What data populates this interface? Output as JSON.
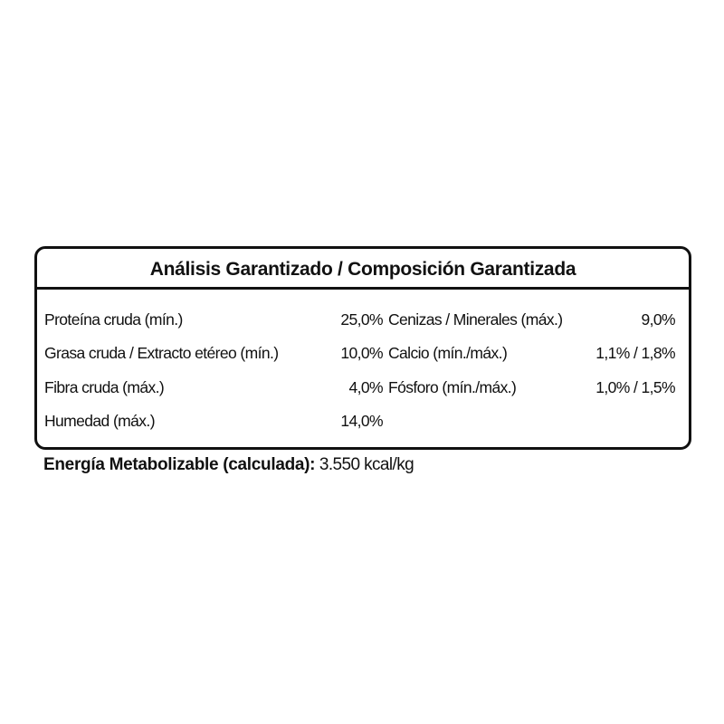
{
  "title": "Análisis Garantizado / Composición Garantizada",
  "rows": [
    {
      "label1": "Proteína cruda (mín.)",
      "value1": "25,0%",
      "label2": "Cenizas / Minerales (máx.)",
      "value2": "9,0%"
    },
    {
      "label1": "Grasa cruda / Extracto etéreo (mín.)",
      "value1": "10,0%",
      "label2": "Calcio (mín./máx.)",
      "value2": "1,1% / 1,8%"
    },
    {
      "label1": "Fibra cruda (máx.)",
      "value1": "4,0%",
      "label2": "Fósforo (mín./máx.)",
      "value2": "1,0% / 1,5%"
    },
    {
      "label1": "Humedad (máx.)",
      "value1": "14,0%",
      "label2": "",
      "value2": ""
    }
  ],
  "energy": {
    "label": "Energía Metabolizable (calculada):",
    "value": " 3.550 kcal/kg"
  }
}
